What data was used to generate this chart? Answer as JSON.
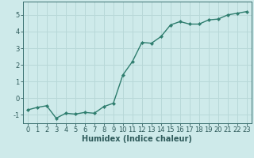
{
  "x": [
    0,
    1,
    2,
    3,
    4,
    5,
    6,
    7,
    8,
    9,
    10,
    11,
    12,
    13,
    14,
    15,
    16,
    17,
    18,
    19,
    20,
    21,
    22,
    23
  ],
  "y": [
    -0.7,
    -0.55,
    -0.45,
    -1.2,
    -0.9,
    -0.95,
    -0.85,
    -0.9,
    -0.5,
    -0.3,
    1.4,
    2.2,
    3.35,
    3.3,
    3.7,
    4.4,
    4.6,
    4.45,
    4.45,
    4.7,
    4.75,
    5.0,
    5.1,
    5.2
  ],
  "line_color": "#2e7d6e",
  "marker": "D",
  "marker_size": 2.2,
  "bg_color": "#ceeaea",
  "grid_color": "#b8d8d8",
  "xlabel": "Humidex (Indice chaleur)",
  "ylim": [
    -1.5,
    5.8
  ],
  "xlim": [
    -0.5,
    23.5
  ],
  "yticks": [
    -1,
    0,
    1,
    2,
    3,
    4,
    5
  ],
  "xticks": [
    0,
    1,
    2,
    3,
    4,
    5,
    6,
    7,
    8,
    9,
    10,
    11,
    12,
    13,
    14,
    15,
    16,
    17,
    18,
    19,
    20,
    21,
    22,
    23
  ],
  "tick_label_color": "#2e5a5a",
  "label_fontsize": 7,
  "tick_fontsize": 6,
  "line_width": 1.0,
  "spine_color": "#3a7070"
}
